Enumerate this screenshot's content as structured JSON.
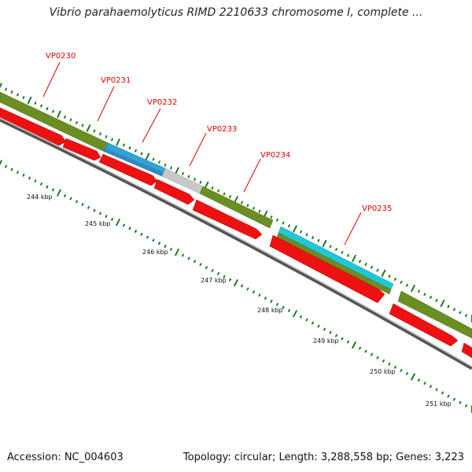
{
  "title": "Vibrio parahaemolyticus RIMD 2210633 chromosome I, complete ...",
  "footer": {
    "accession": "Accession: NC_004603",
    "topology": "Topology: circular; Length: 3,288,558 bp; Genes: 3,223"
  },
  "colors": {
    "backbone": "#8a8a8a",
    "gene_default": "#6b8e23",
    "gene_blue": "#2aa7d6",
    "gene_gray": "#c8c8c8",
    "gene_cyan": "#1fc8d8",
    "cds": "#ee1111",
    "tick": "#1a7a1a",
    "label": "#dd0000"
  },
  "genes": [
    "VP0230",
    "VP0231",
    "VP0232",
    "VP0233",
    "VP0234",
    "VP0235"
  ],
  "scale_labels": [
    "244 kbp",
    "245 kbp",
    "246 kbp",
    "247 kbp",
    "248 kbp",
    "249 kbp",
    "250 kbp",
    "251 kbp"
  ]
}
